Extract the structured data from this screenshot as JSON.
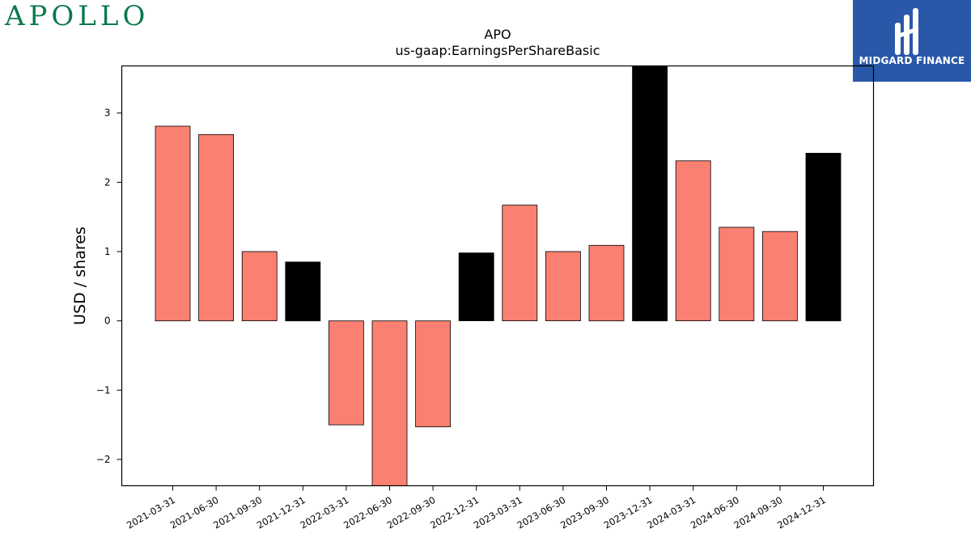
{
  "header": {
    "company_logo_text": "APOLLO",
    "company_logo_color": "#0b7a4b",
    "brand_name": "MIDGARD FINANCE",
    "brand_color": "#2a58a8"
  },
  "chart_data": {
    "type": "bar",
    "title": "APO",
    "subtitle": "us-gaap:EarningsPerShareBasic",
    "ylabel": "USD / shares",
    "xlabel": "",
    "categories": [
      "2021-03-31",
      "2021-06-30",
      "2021-09-30",
      "2021-12-31",
      "2022-03-31",
      "2022-06-30",
      "2022-09-30",
      "2022-12-31",
      "2023-03-31",
      "2023-06-30",
      "2023-09-30",
      "2023-12-31",
      "2024-03-31",
      "2024-06-30",
      "2024-09-30",
      "2024-12-31"
    ],
    "values": [
      2.81,
      2.69,
      1.0,
      0.85,
      -1.5,
      -2.4,
      -1.53,
      0.98,
      1.67,
      1.0,
      1.09,
      3.7,
      2.31,
      1.35,
      1.29,
      2.42
    ],
    "quarter_colors": {
      "annual": "#000000",
      "quarterly": "#fa8072"
    },
    "bar_kind": [
      "quarterly",
      "quarterly",
      "quarterly",
      "annual",
      "quarterly",
      "quarterly",
      "quarterly",
      "annual",
      "quarterly",
      "quarterly",
      "quarterly",
      "annual",
      "quarterly",
      "quarterly",
      "quarterly",
      "annual"
    ],
    "ylim": [
      -2.38,
      3.68
    ],
    "yticks": [
      -2,
      -1,
      0,
      1,
      2,
      3
    ],
    "ytick_labels": [
      "−2",
      "−1",
      "0",
      "1",
      "2",
      "3"
    ],
    "grid": false,
    "legend": "none"
  }
}
